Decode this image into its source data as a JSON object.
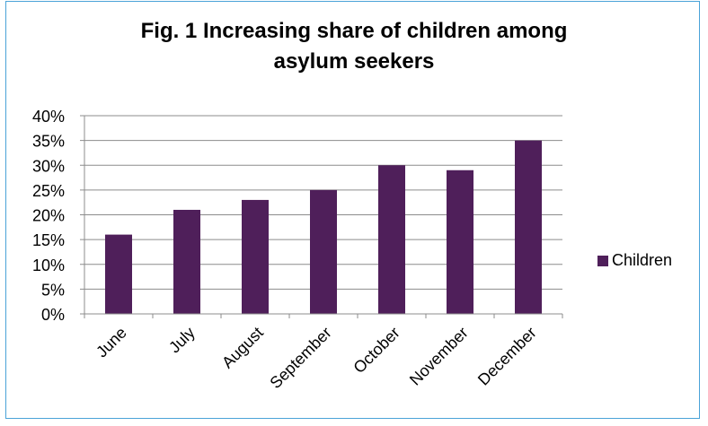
{
  "title_line1": "Fig. 1 Increasing share of children among",
  "title_line2": "asylum seekers",
  "chart_data": {
    "type": "bar",
    "categories": [
      "June",
      "July",
      "August",
      "September",
      "October",
      "November",
      "December"
    ],
    "series": [
      {
        "name": "Children",
        "values": [
          16,
          21,
          23,
          25,
          30,
          29,
          35
        ]
      }
    ],
    "y_ticks": [
      "0%",
      "5%",
      "10%",
      "15%",
      "20%",
      "25%",
      "30%",
      "35%",
      "40%"
    ],
    "ylim": [
      0,
      40
    ],
    "xlabel": "",
    "ylabel": "",
    "grid": true,
    "legend_position": "right",
    "bar_color": "#4f1f5a"
  }
}
